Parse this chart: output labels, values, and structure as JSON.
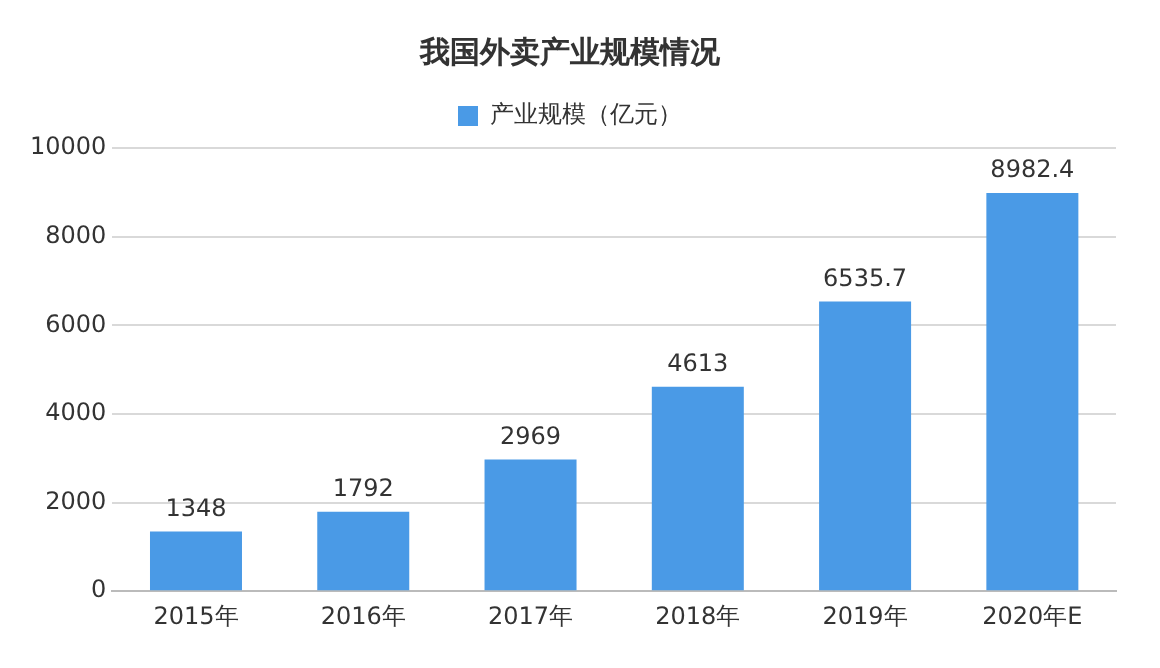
{
  "chart_data": {
    "type": "bar",
    "title": "我国外卖产业规模情况",
    "categories": [
      "2015年",
      "2016年",
      "2017年",
      "2018年",
      "2019年",
      "2020年E"
    ],
    "series": [
      {
        "name": "产业规模（亿元）",
        "color": "#4a9ae6",
        "values": [
          1348,
          1792,
          2969,
          4613,
          6535.7,
          8982.4
        ]
      }
    ],
    "ylim": [
      0,
      10000
    ],
    "yticks": [
      0,
      2000,
      4000,
      6000,
      8000,
      10000
    ],
    "grid": "y",
    "legend": "top",
    "data_labels": true
  }
}
